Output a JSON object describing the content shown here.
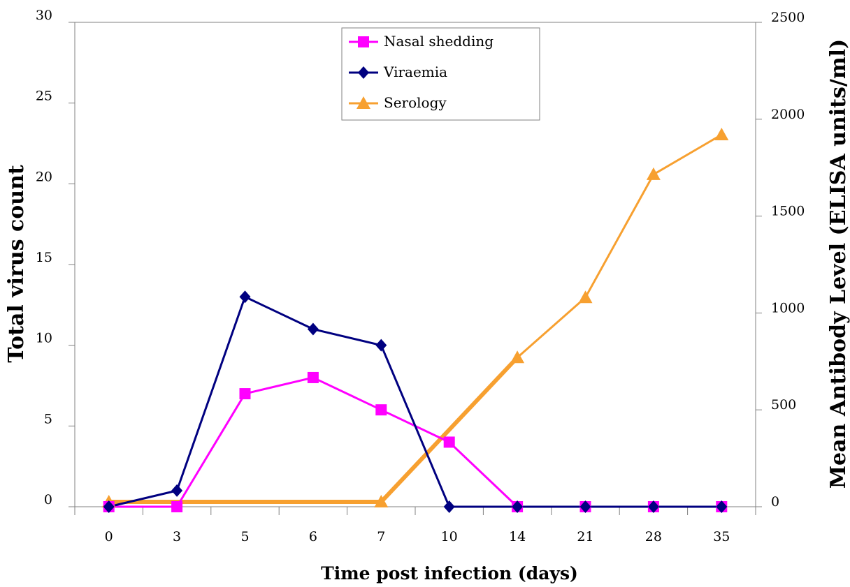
{
  "chart_data": {
    "type": "line",
    "title": "",
    "xlabel": "Time post infection (days)",
    "ylabel": "Total virus count",
    "y2label": "Mean Antibody Level (ELISA units/ml)",
    "categories": [
      "0",
      "3",
      "5",
      "6",
      "7",
      "10",
      "14",
      "21",
      "28",
      "35"
    ],
    "ylim": [
      0,
      30
    ],
    "yticks": [
      0,
      5,
      10,
      15,
      20,
      25,
      30
    ],
    "y2lim": [
      0,
      2500
    ],
    "y2ticks": [
      0,
      500,
      1000,
      1500,
      2000,
      2500
    ],
    "legend_position": "top-center",
    "series": [
      {
        "name": "Nasal shedding",
        "axis": "left",
        "marker": "square",
        "color": "#ff00ff",
        "values": [
          0,
          0,
          7,
          8,
          6,
          4,
          0,
          0,
          0,
          0
        ]
      },
      {
        "name": "Viraemia",
        "axis": "left",
        "marker": "diamond",
        "color": "#000080",
        "values": [
          0,
          1,
          13,
          11,
          10,
          0,
          0,
          0,
          0,
          0
        ]
      },
      {
        "name": "Serology",
        "axis": "right",
        "marker": "triangle",
        "color": "#f7a030",
        "values": [
          25,
          null,
          null,
          null,
          25,
          null,
          770,
          1080,
          1715,
          1920
        ]
      }
    ]
  }
}
